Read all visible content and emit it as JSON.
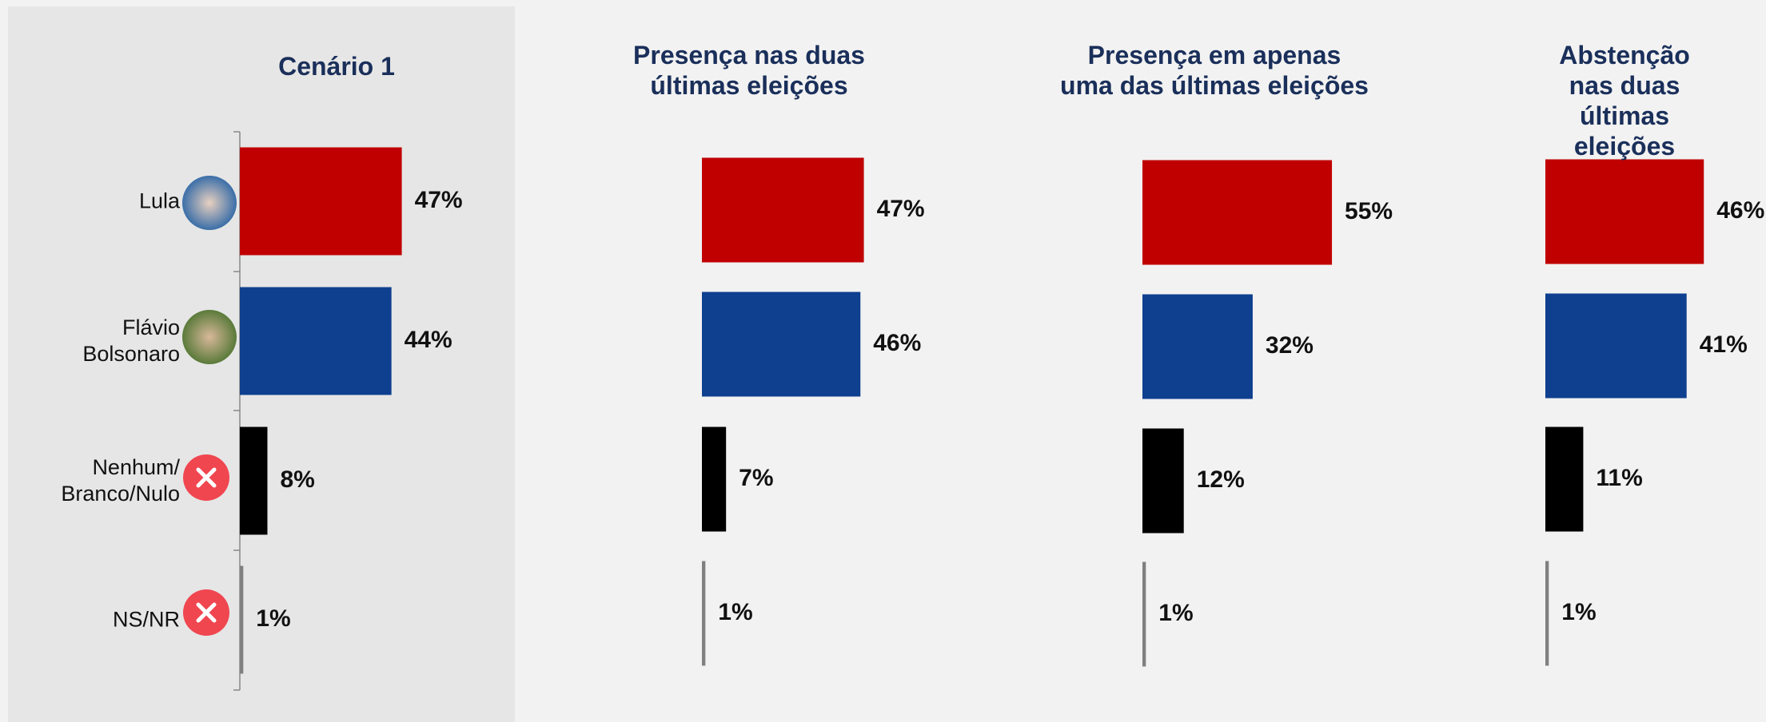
{
  "chart_data": [
    {
      "type": "bar",
      "title": "Cenário 1",
      "categories": [
        "Lula",
        "Flávio\nBolsonaro",
        "Nenhum/\nBranco/Nulo",
        "NS/NR"
      ],
      "values": [
        47,
        44,
        8,
        1
      ],
      "value_labels": [
        "47%",
        "44%",
        "8%",
        "1%"
      ],
      "colors": [
        "#c00000",
        "#0f3f8f",
        "#000000",
        "#808080"
      ]
    },
    {
      "type": "bar",
      "title": "Presença nas duas\núltimas eleições",
      "values": [
        47,
        46,
        7,
        1
      ],
      "value_labels": [
        "47%",
        "46%",
        "7%",
        "1%"
      ],
      "colors": [
        "#c00000",
        "#0f3f8f",
        "#000000",
        "#808080"
      ]
    },
    {
      "type": "bar",
      "title": "Presença em apenas\numa das últimas eleições",
      "values": [
        55,
        32,
        12,
        1
      ],
      "value_labels": [
        "55%",
        "32%",
        "12%",
        "1%"
      ],
      "colors": [
        "#c00000",
        "#0f3f8f",
        "#000000",
        "#808080"
      ]
    },
    {
      "type": "bar",
      "title": "Abstenção nas duas\núltimas eleições",
      "values": [
        46,
        41,
        11,
        1
      ],
      "value_labels": [
        "46%",
        "41%",
        "11%",
        "1%"
      ],
      "colors": [
        "#c00000",
        "#0f3f8f",
        "#000000",
        "#808080"
      ]
    }
  ]
}
